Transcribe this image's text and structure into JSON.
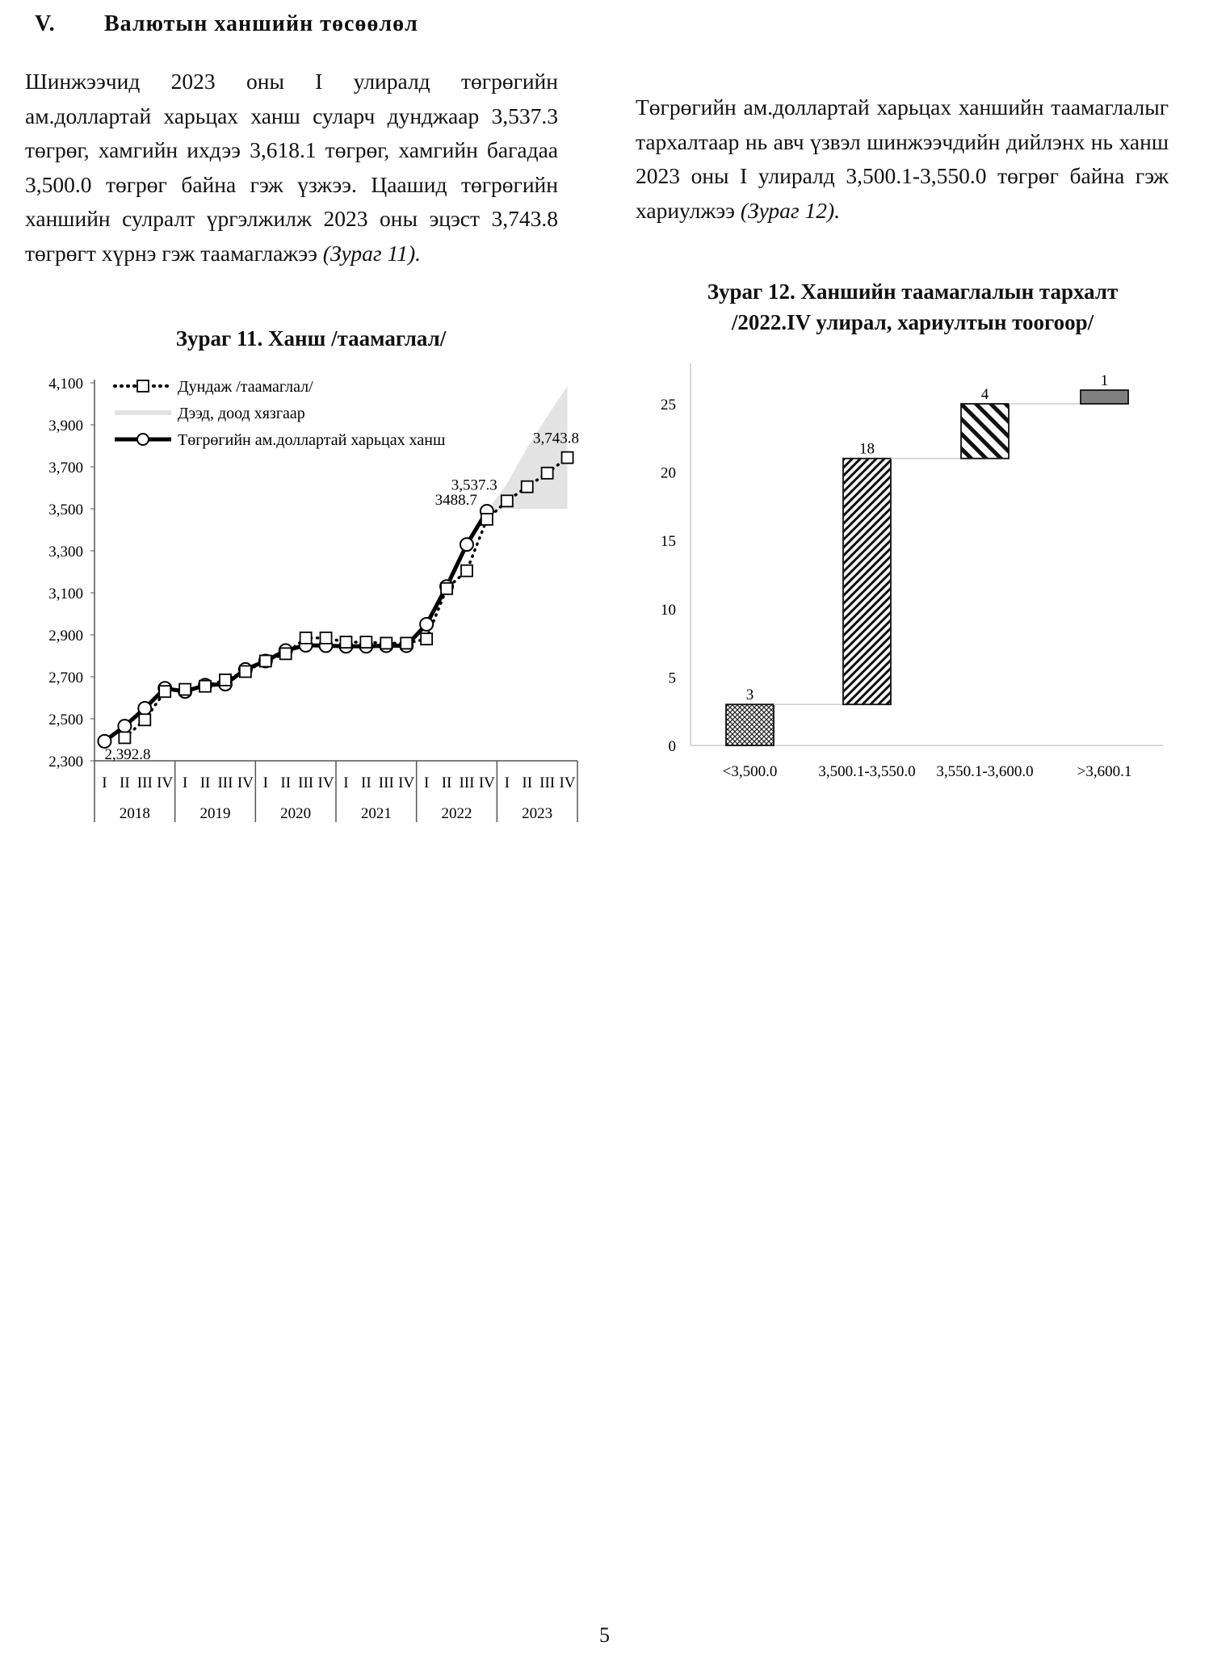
{
  "section": {
    "number": "V.",
    "title": "Валютын ханшийн төсөөлөл"
  },
  "left_paragraph": {
    "text": "Шинжээчид 2023 оны I улиралд төгрөгийн ам.доллартай харьцах ханш суларч дунджаар 3,537.3 төгрөг, хамгийн ихдээ 3,618.1 төгрөг, хамгийн багадаа 3,500.0 төгрөг байна гэж үзжээ. Цаашид төгрөгийн ханшийн сулралт үргэлжилж 2023 оны эцэст 3,743.8 төгрөгт хүрнэ гэж таамаглажээ ",
    "ref": "(Зураг 11)."
  },
  "right_paragraph": {
    "text": "Төгрөгийн ам.доллартай харьцах ханшийн таамаглалыг тархалтаар нь авч үзвэл шинжээчдийн дийлэнх нь ханш 2023 оны I улиралд 3,500.1-3,550.0 төгрөг байна гэж хариулжээ ",
    "ref": "(Зураг 12)."
  },
  "figure11_caption": "Зураг 11. Ханш /таамаглал/",
  "figure12_caption": {
    "line1": "Зураг 12. Ханшийн таамаглалын тархалт",
    "line2": "/2022.IV улирал, хариултын тоогоор/"
  },
  "page_number": "5",
  "chart_data": [
    {
      "type": "line",
      "title": "Зураг 11. Ханш /таамаглал/",
      "ylim": [
        2300,
        4100
      ],
      "yticks": [
        "2,300",
        "2,500",
        "2,700",
        "2,900",
        "3,100",
        "3,300",
        "3,500",
        "3,700",
        "3,900",
        "4,100"
      ],
      "ytick_values": [
        2300,
        2500,
        2700,
        2900,
        3100,
        3300,
        3500,
        3700,
        3900,
        4100
      ],
      "quarters": [
        "I",
        "II",
        "III",
        "IV"
      ],
      "years": [
        "2018",
        "2019",
        "2020",
        "2021",
        "2022",
        "2023"
      ],
      "legend_placement": "top-left",
      "series": [
        {
          "name": "Дундаж /таамаглал/",
          "style": "dotted-square",
          "start_index": 1,
          "values": [
            2410,
            2495,
            2630,
            2640,
            2655,
            2685,
            2725,
            2775,
            2810,
            2885,
            2885,
            2865,
            2865,
            2860,
            2860,
            2880,
            3120,
            3205,
            3450,
            3537.3,
            3605,
            3670,
            3743.8
          ]
        },
        {
          "name": "Дээд, доод хязгаар",
          "style": "band",
          "color": "#e3e3e3",
          "start_index": 19,
          "lower": [
            3488.7,
            3500,
            3500,
            3500,
            3500
          ],
          "upper": [
            3488.7,
            3620,
            3790,
            3940,
            4085
          ]
        },
        {
          "name": "Төгрөгийн ам.доллартай харьцах ханш",
          "style": "solid-circle",
          "start_index": 0,
          "values": [
            2392.8,
            2465,
            2550,
            2645,
            2630,
            2660,
            2665,
            2735,
            2775,
            2825,
            2850,
            2848,
            2845,
            2845,
            2848,
            2848,
            2950,
            3130,
            3330,
            3488.7
          ]
        }
      ],
      "annotations": [
        {
          "text": "2,392.8",
          "index": 0
        },
        {
          "text": "3488.7",
          "index": 19
        },
        {
          "text": "3,537.3",
          "index": 20
        },
        {
          "text": "3,743.8",
          "index": 23
        }
      ]
    },
    {
      "type": "bar",
      "subtype": "waterfall",
      "title": "Зураг 12. Ханшийн таамаглалын тархалт /2022.IV улирал, хариултын тоогоор/",
      "categories": [
        "<3,500.0",
        "3,500.1-3,550.0",
        "3,550.1-3,600.0",
        ">3,600.1"
      ],
      "values": [
        3,
        18,
        4,
        1
      ],
      "data_labels": [
        "3",
        "18",
        "4",
        "1"
      ],
      "ylim": [
        0,
        27
      ],
      "yticks": [
        "0",
        "5",
        "10",
        "15",
        "20",
        "25"
      ],
      "ytick_values": [
        0,
        5,
        10,
        15,
        20,
        25
      ],
      "fills": [
        "crosshatch",
        "dense-diagonal",
        "wide-diagonal",
        "#808080"
      ]
    }
  ]
}
